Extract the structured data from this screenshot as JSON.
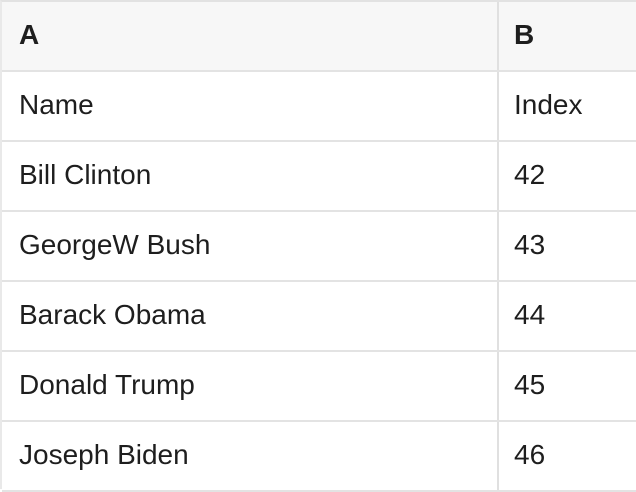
{
  "table": {
    "column_headers": [
      "A",
      "B"
    ],
    "rows": [
      {
        "a": "Name",
        "b": "Index"
      },
      {
        "a": "Bill Clinton",
        "b": "42"
      },
      {
        "a": "GeorgeW Bush",
        "b": "43"
      },
      {
        "a": "Barack Obama",
        "b": "44"
      },
      {
        "a": "Donald Trump",
        "b": "45"
      },
      {
        "a": "Joseph Biden",
        "b": "46"
      }
    ]
  },
  "colors": {
    "header_bg": "#f7f7f7",
    "grid_line": "#e3e3e3",
    "text": "#1e1e1e",
    "cell_bg": "#ffffff"
  }
}
